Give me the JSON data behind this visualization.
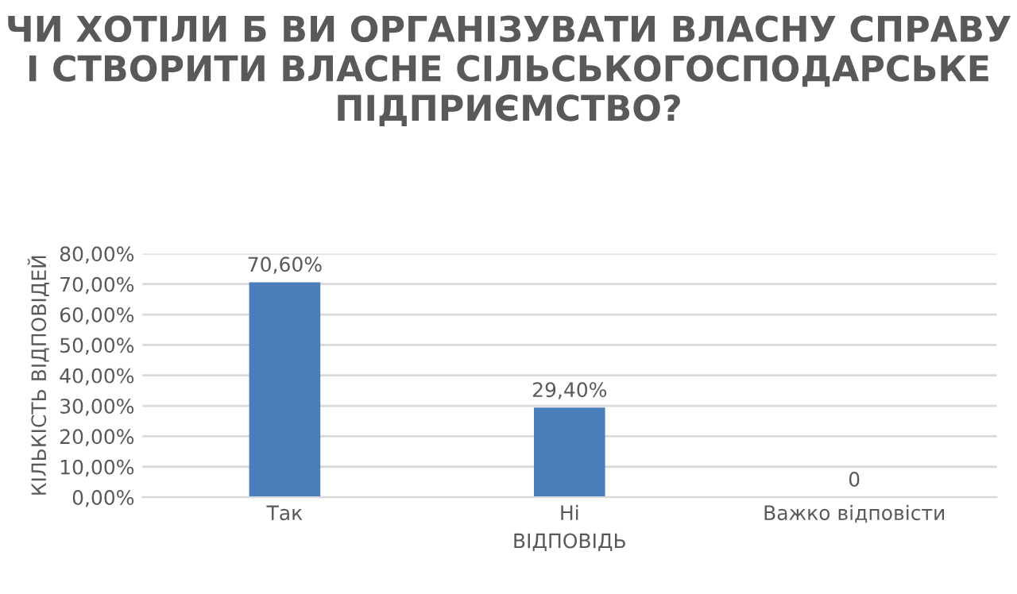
{
  "chart_data": {
    "type": "bar",
    "title": "ЧИ ХОТІЛИ Б ВИ ОРГАНІЗУВАТИ ВЛАСНУ СПРАВУ І СТВОРИТИ ВЛАСНЕ СІЛЬСЬКОГОСПОДАРСЬКЕ ПІДПРИЄМСТВО?",
    "xlabel": "ВІДПОВІДЬ",
    "ylabel": "КІЛЬКІСТЬ ВІДПОВІДЕЙ",
    "categories": [
      "Так",
      "Ні",
      "Важко відповісти"
    ],
    "values": [
      70.6,
      29.4,
      0
    ],
    "value_labels": [
      "70,60%",
      "29,40%",
      "0"
    ],
    "color": "#4a7ebb",
    "ylim": [
      0,
      80
    ],
    "yticks": [
      {
        "value": 0,
        "label": "0,00%"
      },
      {
        "value": 10,
        "label": "10,00%"
      },
      {
        "value": 20,
        "label": "20,00%"
      },
      {
        "value": 30,
        "label": "30,00%"
      },
      {
        "value": 40,
        "label": "40,00%"
      },
      {
        "value": 50,
        "label": "50,00%"
      },
      {
        "value": 60,
        "label": "60,00%"
      },
      {
        "value": 70,
        "label": "70,00%"
      },
      {
        "value": 80,
        "label": "80,00%"
      }
    ],
    "grid": "y"
  }
}
